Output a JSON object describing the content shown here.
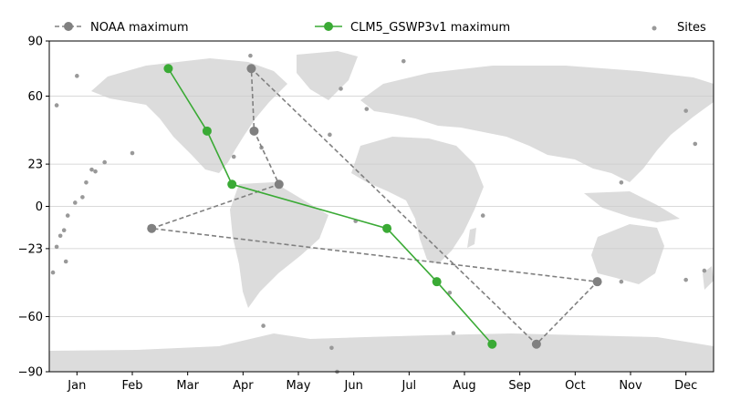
{
  "chart_data": {
    "type": "line",
    "title": "",
    "xlabel": "",
    "ylabel": "",
    "background": "world-map",
    "grid": {
      "y": true,
      "x": false
    },
    "legend": {
      "placement": "top",
      "columns": 3
    },
    "x_ticks": [
      "Jan",
      "Feb",
      "Mar",
      "Apr",
      "May",
      "Jun",
      "Jul",
      "Aug",
      "Sep",
      "Oct",
      "Nov",
      "Dec"
    ],
    "y_ticks": [
      90,
      60,
      23,
      0,
      -23,
      -60,
      -90
    ],
    "ylim": [
      -90,
      90
    ],
    "xlim": [
      0.5,
      12.5
    ],
    "series": [
      {
        "name": "NOAA maximum",
        "color": "#808080",
        "linestyle": "dashed",
        "marker": "circle",
        "points": [
          {
            "month": 2.35,
            "lat": -12
          },
          {
            "month": 4.65,
            "lat": 12
          },
          {
            "month": 4.2,
            "lat": 41
          },
          {
            "month": 4.15,
            "lat": 75
          },
          {
            "month": 9.3,
            "lat": -75
          },
          {
            "month": 10.4,
            "lat": -41
          },
          {
            "month": 2.35,
            "lat": -12
          }
        ]
      },
      {
        "name": "CLM5_GSWP3v1 maximum",
        "color": "#3aaa35",
        "linestyle": "solid",
        "marker": "circle",
        "points": [
          {
            "month": 2.65,
            "lat": 75
          },
          {
            "month": 3.35,
            "lat": 41
          },
          {
            "month": 3.8,
            "lat": 12
          },
          {
            "month": 6.6,
            "lat": -12
          },
          {
            "month": 7.5,
            "lat": -41
          },
          {
            "month": 8.5,
            "lat": -75
          }
        ]
      },
      {
        "name": "Sites",
        "color": "#999999",
        "linestyle": "none",
        "marker": "small-circle",
        "points": [
          {
            "lon": -165,
            "lat": 71
          },
          {
            "lon": -176,
            "lat": 55
          },
          {
            "lon": -71,
            "lat": 82
          },
          {
            "lon": -22,
            "lat": 64
          },
          {
            "lon": 12,
            "lat": 79
          },
          {
            "lon": -8,
            "lat": 53
          },
          {
            "lon": -28,
            "lat": 39
          },
          {
            "lon": -157,
            "lat": 20
          },
          {
            "lon": -150,
            "lat": 24
          },
          {
            "lon": -155,
            "lat": 19
          },
          {
            "lon": -160,
            "lat": 13
          },
          {
            "lon": -162,
            "lat": 5
          },
          {
            "lon": -166,
            "lat": 2
          },
          {
            "lon": -170,
            "lat": -5
          },
          {
            "lon": -172,
            "lat": -13
          },
          {
            "lon": -174,
            "lat": -16
          },
          {
            "lon": -176,
            "lat": -22
          },
          {
            "lon": -171,
            "lat": -30
          },
          {
            "lon": -178,
            "lat": -36
          },
          {
            "lon": -190,
            "lat": 34
          },
          {
            "lon": -135,
            "lat": 29
          },
          {
            "lon": -80,
            "lat": 27
          },
          {
            "lon": -65,
            "lat": 32
          },
          {
            "lon": -14,
            "lat": -8
          },
          {
            "lon": 55,
            "lat": -5
          },
          {
            "lon": 37,
            "lat": -47
          },
          {
            "lon": 130,
            "lat": 13
          },
          {
            "lon": 130,
            "lat": -41
          },
          {
            "lon": 165,
            "lat": 52
          },
          {
            "lon": 165,
            "lat": -40
          },
          {
            "lon": 175,
            "lat": -35
          },
          {
            "lon": -64,
            "lat": -65
          },
          {
            "lon": -27,
            "lat": -77
          },
          {
            "lon": -24,
            "lat": -90
          },
          {
            "lon": 39,
            "lat": -69
          }
        ]
      }
    ]
  }
}
